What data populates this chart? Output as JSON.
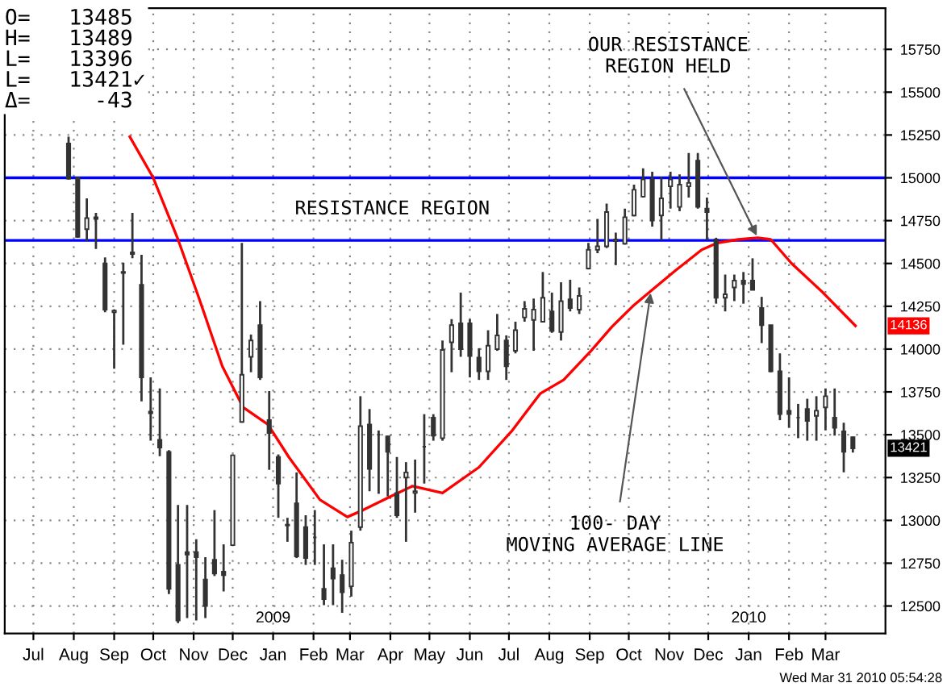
{
  "chart_data": {
    "type": "candlestick",
    "color": "#333333",
    "x": [
      "2008-07-28",
      "2008-08-04",
      "2008-08-11",
      "2008-08-18",
      "2008-08-25",
      "2008-09-01",
      "2008-09-08",
      "2008-09-15",
      "2008-09-22",
      "2008-09-29",
      "2008-10-06",
      "2008-10-13",
      "2008-10-20",
      "2008-10-27",
      "2008-11-03",
      "2008-11-10",
      "2008-11-17",
      "2008-11-24",
      "2008-12-01",
      "2008-12-08",
      "2008-12-15",
      "2008-12-22",
      "2008-12-29",
      "2009-01-05",
      "2009-01-12",
      "2009-01-19",
      "2009-01-26",
      "2009-02-02",
      "2009-02-09",
      "2009-02-16",
      "2009-02-23",
      "2009-03-02",
      "2009-03-09",
      "2009-03-16",
      "2009-03-23",
      "2009-03-30",
      "2009-04-06",
      "2009-04-13",
      "2009-04-20",
      "2009-04-27",
      "2009-05-04",
      "2009-05-11",
      "2009-05-18",
      "2009-05-25",
      "2009-06-01",
      "2009-06-08",
      "2009-06-15",
      "2009-06-22",
      "2009-06-29",
      "2009-07-06",
      "2009-07-13",
      "2009-07-20",
      "2009-07-27",
      "2009-08-03",
      "2009-08-10",
      "2009-08-17",
      "2009-08-24",
      "2009-08-31",
      "2009-09-07",
      "2009-09-14",
      "2009-09-21",
      "2009-09-28",
      "2009-10-05",
      "2009-10-12",
      "2009-10-19",
      "2009-10-26",
      "2009-11-02",
      "2009-11-09",
      "2009-11-16",
      "2009-11-23",
      "2009-11-30",
      "2009-12-07",
      "2009-12-14",
      "2009-12-21",
      "2009-12-28",
      "2010-01-04",
      "2010-01-11",
      "2010-01-18",
      "2010-01-25",
      "2010-02-01",
      "2010-02-08",
      "2010-02-15",
      "2010-02-22",
      "2010-03-01",
      "2010-03-08",
      "2010-03-15",
      "2010-03-22"
    ],
    "ohlc": [
      [
        15200,
        15240,
        14990,
        14995
      ],
      [
        15000,
        15005,
        14650,
        14655
      ],
      [
        14700,
        14880,
        14630,
        14765
      ],
      [
        14770,
        14795,
        14585,
        14760
      ],
      [
        14500,
        14535,
        14215,
        14230
      ],
      [
        14215,
        14230,
        13885,
        14225
      ],
      [
        14450,
        14505,
        14025,
        14445
      ],
      [
        14555,
        14795,
        14530,
        14565
      ],
      [
        14375,
        14550,
        13695,
        13835
      ],
      [
        13635,
        13835,
        13465,
        13625
      ],
      [
        13470,
        13770,
        13375,
        13425
      ],
      [
        13400,
        13410,
        12570,
        12600
      ],
      [
        12740,
        13090,
        12400,
        12415
      ],
      [
        12815,
        13090,
        12430,
        12800
      ],
      [
        12815,
        12890,
        12415,
        12785
      ],
      [
        12655,
        12785,
        12430,
        12500
      ],
      [
        12770,
        13060,
        12675,
        12690
      ],
      [
        12700,
        12860,
        12585,
        12680
      ],
      [
        12855,
        13385,
        12850,
        13380
      ],
      [
        13575,
        14620,
        13570,
        13850
      ],
      [
        13955,
        14085,
        13865,
        14050
      ],
      [
        14140,
        14280,
        13820,
        13835
      ],
      [
        13585,
        13755,
        13295,
        13510
      ],
      [
        13370,
        13385,
        13015,
        13215
      ],
      [
        12970,
        13015,
        12875,
        12975
      ],
      [
        13100,
        13280,
        12780,
        12790
      ],
      [
        12960,
        13030,
        12740,
        12780
      ],
      [
        12900,
        13060,
        12740,
        12900
      ],
      [
        12600,
        12860,
        12505,
        12540
      ],
      [
        12720,
        12860,
        12505,
        12660
      ],
      [
        12680,
        12770,
        12460,
        12580
      ],
      [
        12615,
        12940,
        12555,
        12870
      ],
      [
        12960,
        13725,
        12940,
        13550
      ],
      [
        13560,
        13650,
        13170,
        13300
      ],
      [
        13500,
        13525,
        13155,
        13500
      ],
      [
        13490,
        13495,
        13140,
        13400
      ],
      [
        13160,
        13370,
        13015,
        13030
      ],
      [
        13250,
        13340,
        12875,
        13280
      ],
      [
        13160,
        13355,
        13045,
        13170
      ],
      [
        13430,
        13620,
        13215,
        13430
      ],
      [
        13600,
        13620,
        13465,
        13495
      ],
      [
        13480,
        14050,
        13465,
        13995
      ],
      [
        14040,
        14175,
        13865,
        14140
      ],
      [
        14150,
        14330,
        13955,
        14000
      ],
      [
        14150,
        14175,
        13835,
        13960
      ],
      [
        13950,
        14005,
        13820,
        13870
      ],
      [
        13870,
        14110,
        13820,
        14020
      ],
      [
        14000,
        14205,
        13990,
        14080
      ],
      [
        14050,
        14080,
        13820,
        13900
      ],
      [
        13990,
        14160,
        13975,
        14110
      ],
      [
        14185,
        14280,
        14160,
        14235
      ],
      [
        14170,
        14295,
        13990,
        14230
      ],
      [
        14160,
        14450,
        14160,
        14300
      ],
      [
        14220,
        14330,
        14095,
        14105
      ],
      [
        14100,
        14390,
        14050,
        14280
      ],
      [
        14290,
        14405,
        14220,
        14240
      ],
      [
        14230,
        14360,
        14205,
        14310
      ],
      [
        14470,
        14620,
        14465,
        14580
      ],
      [
        14580,
        14760,
        14560,
        14600
      ],
      [
        14600,
        14850,
        14590,
        14800
      ],
      [
        14630,
        14680,
        14490,
        14640
      ],
      [
        14615,
        14820,
        14610,
        14770
      ],
      [
        14780,
        14960,
        14775,
        14930
      ],
      [
        14890,
        15055,
        14885,
        14990
      ],
      [
        14990,
        15035,
        14715,
        14750
      ],
      [
        14780,
        15005,
        14635,
        14880
      ],
      [
        14950,
        15035,
        14820,
        14990
      ],
      [
        14830,
        15020,
        14805,
        14960
      ],
      [
        14950,
        15145,
        14885,
        14970
      ],
      [
        15100,
        15145,
        14820,
        14830
      ],
      [
        14820,
        14885,
        14635,
        14800
      ],
      [
        14640,
        14650,
        14265,
        14300
      ],
      [
        14300,
        14435,
        14220,
        14320
      ],
      [
        14360,
        14435,
        14280,
        14400
      ],
      [
        14400,
        14450,
        14265,
        14380
      ],
      [
        14400,
        14530,
        14345,
        14345
      ],
      [
        14240,
        14305,
        14035,
        14140
      ],
      [
        14140,
        14140,
        13865,
        13870
      ],
      [
        13870,
        13975,
        13585,
        13620
      ],
      [
        13640,
        13835,
        13540,
        13620
      ],
      [
        13600,
        13680,
        13480,
        13600
      ],
      [
        13650,
        13710,
        13465,
        13580
      ],
      [
        13610,
        13725,
        13465,
        13640
      ],
      [
        13660,
        13770,
        13525,
        13725
      ],
      [
        13600,
        13770,
        13495,
        13540
      ],
      [
        13520,
        13570,
        13280,
        13400
      ],
      [
        13485,
        13489,
        13396,
        13421
      ]
    ],
    "series": [
      {
        "type": "line",
        "color": "#ff0000",
        "x": [
          "2008-09-13",
          "2008-10-01",
          "2008-10-20",
          "2008-11-05",
          "2008-11-23",
          "2008-12-09",
          "2008-12-28",
          "2009-01-13",
          "2009-02-06",
          "2009-02-27",
          "2009-03-11",
          "2009-04-04",
          "2009-04-18",
          "2009-05-11",
          "2009-06-08",
          "2009-07-03",
          "2009-07-25",
          "2009-08-12",
          "2009-09-02",
          "2009-09-18",
          "2009-10-04",
          "2009-10-18",
          "2009-11-06",
          "2009-11-26",
          "2009-12-08",
          "2009-12-24",
          "2010-01-08",
          "2010-01-18",
          "2010-02-03",
          "2010-02-27",
          "2010-03-24"
        ],
        "values": [
          15240,
          15000,
          14640,
          14300,
          13900,
          13660,
          13560,
          13370,
          13120,
          13020,
          13060,
          13150,
          13200,
          13160,
          13310,
          13520,
          13740,
          13820,
          13990,
          14130,
          14250,
          14340,
          14460,
          14580,
          14620,
          14640,
          14650,
          14640,
          14500,
          14330,
          14136
        ]
      }
    ],
    "ref_lines": [
      {
        "axis": "y",
        "value": 15000,
        "color": "#0000ff"
      },
      {
        "axis": "y",
        "value": 14635,
        "color": "#0000ff"
      }
    ],
    "ylim": [
      12340,
      15990
    ],
    "yticks": [
      12500,
      12750,
      13000,
      13250,
      13500,
      13750,
      14000,
      14250,
      14500,
      14750,
      15000,
      15250,
      15500,
      15750
    ],
    "xlim": [
      "2008-06-09",
      "2010-04-16"
    ],
    "xticks": [
      {
        "value": "2008-07",
        "label": "Jul"
      },
      {
        "value": "2008-08",
        "label": "Aug"
      },
      {
        "value": "2008-09",
        "label": "Sep"
      },
      {
        "value": "2008-10",
        "label": "Oct"
      },
      {
        "value": "2008-11",
        "label": "Nov"
      },
      {
        "value": "2008-12",
        "label": "Dec"
      },
      {
        "value": "2009-01",
        "label": "Jan"
      },
      {
        "value": "2009-02",
        "label": "Feb"
      },
      {
        "value": "2009-03",
        "label": "Mar"
      },
      {
        "value": "2009-04",
        "label": "Apr"
      },
      {
        "value": "2009-05",
        "label": "May"
      },
      {
        "value": "2009-06",
        "label": "Jun"
      },
      {
        "value": "2009-07",
        "label": "Jul"
      },
      {
        "value": "2009-08",
        "label": "Aug"
      },
      {
        "value": "2009-09",
        "label": "Sep"
      },
      {
        "value": "2009-10",
        "label": "Oct"
      },
      {
        "value": "2009-11",
        "label": "Nov"
      },
      {
        "value": "2009-12",
        "label": "Dec"
      },
      {
        "value": "2010-01",
        "label": "Jan"
      },
      {
        "value": "2010-02",
        "label": "Feb"
      },
      {
        "value": "2010-03",
        "label": "Mar"
      }
    ],
    "x2lim": [
      "2008-06-09",
      "2010-04-16"
    ],
    "x2ticks": [
      {
        "value": "2009-01",
        "label": "2009"
      },
      {
        "value": "2010-01",
        "label": "2010"
      }
    ],
    "grid": true,
    "annotations": [
      "O=   13485\nH=   13489\nL=   13396\nL=   13421✓\nΔ=     -43",
      "Wed Mar 31 2010 05:54:28",
      "RESISTANCE REGION",
      {
        "text": "OUR RESISTANCE\nREGION HELD",
        "x": "2010-01-08",
        "y": 14650
      },
      {
        "text": "100- DAY\nMOVING AVERAGE LINE",
        "x": "2009-10-18",
        "y": 14340
      },
      {
        "text": "14136",
        "y": 14136
      },
      {
        "text": "13421",
        "y": 13421
      }
    ]
  }
}
